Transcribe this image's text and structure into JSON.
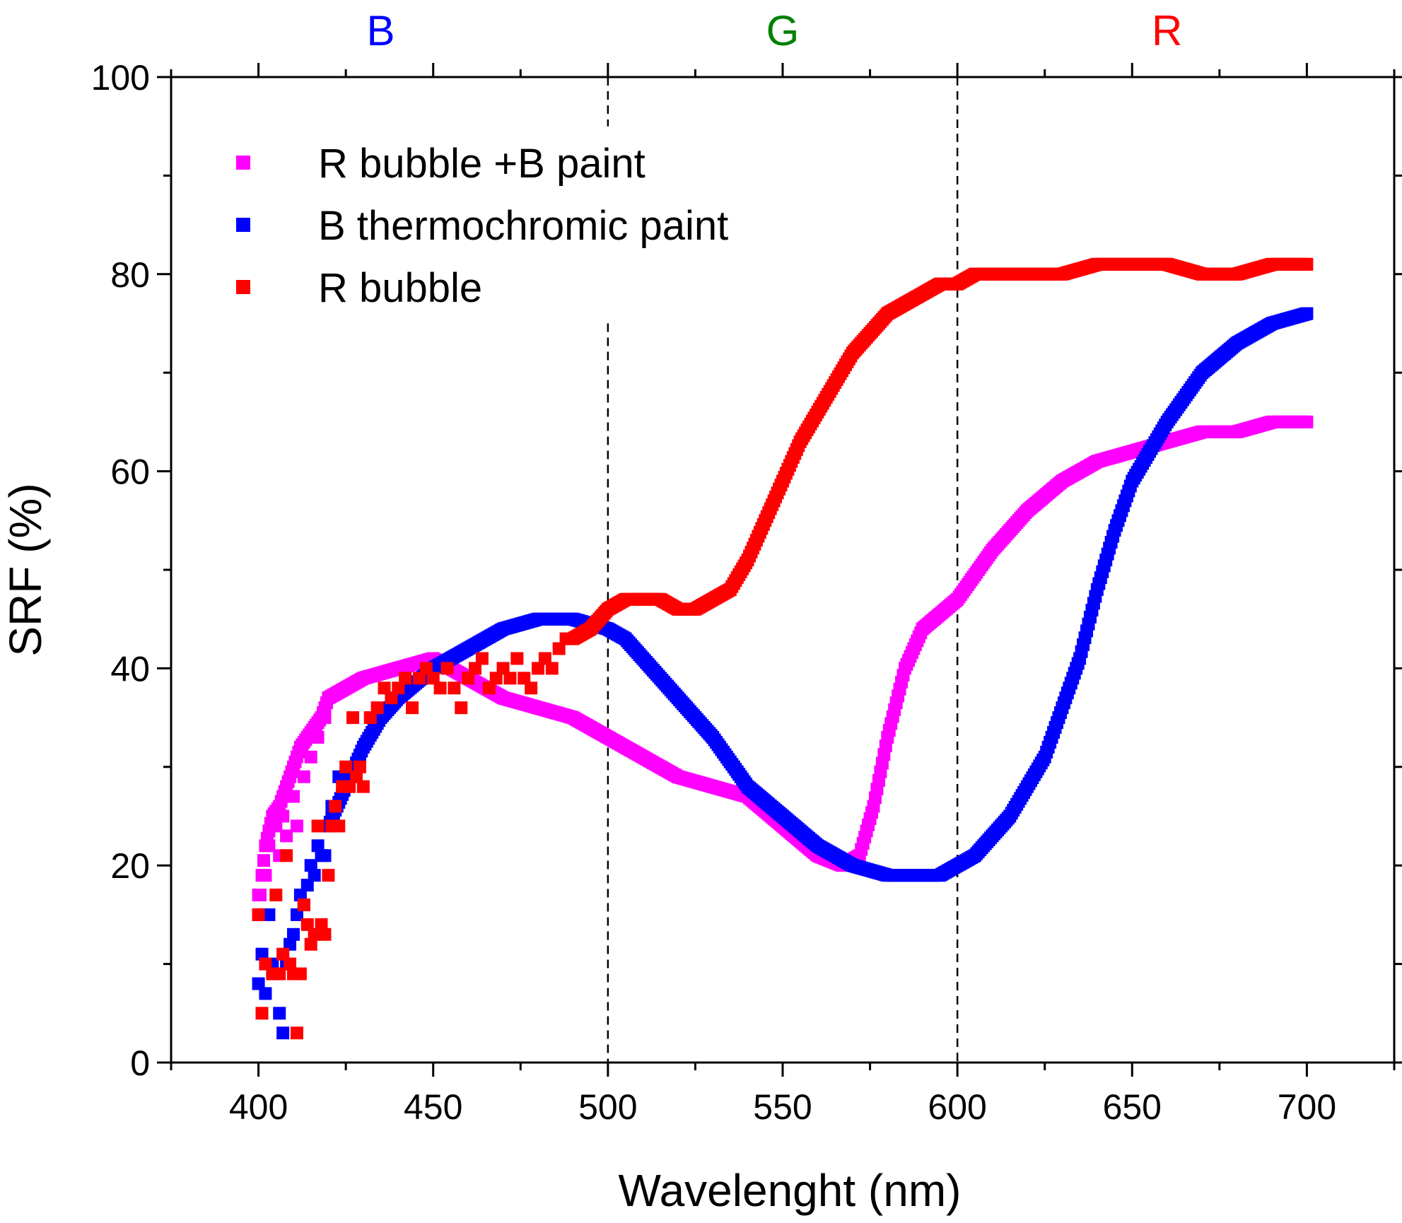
{
  "colors": {
    "magenta": "#ff00ff",
    "blue": "#0000ff",
    "red": "#ff0000",
    "green": "#008000",
    "axis": "#000000"
  },
  "chart_data": {
    "type": "scatter",
    "title": "",
    "xlabel": "Wavelenght (nm)",
    "ylabel": "SRF (%)",
    "xlim": [
      375,
      725
    ],
    "ylim": [
      0,
      100
    ],
    "xticks": [
      400,
      450,
      500,
      550,
      600,
      650,
      700
    ],
    "yticks": [
      0,
      20,
      40,
      60,
      80,
      100
    ],
    "grid": false,
    "legend_position": "top-left",
    "band_labels": [
      {
        "label": "B",
        "x": 435,
        "color": "#0000ff"
      },
      {
        "label": "G",
        "x": 550,
        "color": "#008000"
      },
      {
        "label": "R",
        "x": 660,
        "color": "#ff0000"
      }
    ],
    "vlines": [
      {
        "x": 500,
        "segments": [
          [
            100,
            95
          ],
          [
            75,
            0
          ]
        ]
      },
      {
        "x": 600,
        "segments": [
          [
            100,
            0
          ]
        ]
      }
    ],
    "series": [
      {
        "name": "R bubble +B paint",
        "color": "#ff00ff",
        "points": [
          [
            400,
            15
          ],
          [
            401,
            19
          ],
          [
            402,
            22
          ],
          [
            404,
            25
          ],
          [
            406,
            26
          ],
          [
            408,
            28
          ],
          [
            410,
            30
          ],
          [
            412,
            32
          ],
          [
            414,
            33
          ],
          [
            416,
            34
          ],
          [
            418,
            35
          ],
          [
            420,
            37
          ],
          [
            425,
            38
          ],
          [
            430,
            39
          ],
          [
            440,
            40
          ],
          [
            450,
            41
          ],
          [
            460,
            39
          ],
          [
            470,
            37
          ],
          [
            480,
            36
          ],
          [
            490,
            35
          ],
          [
            500,
            33
          ],
          [
            510,
            31
          ],
          [
            520,
            29
          ],
          [
            530,
            28
          ],
          [
            540,
            27
          ],
          [
            550,
            24
          ],
          [
            560,
            21
          ],
          [
            567,
            20
          ],
          [
            572,
            21
          ],
          [
            576,
            26
          ],
          [
            580,
            33
          ],
          [
            585,
            40
          ],
          [
            590,
            44
          ],
          [
            600,
            47
          ],
          [
            610,
            52
          ],
          [
            620,
            56
          ],
          [
            630,
            59
          ],
          [
            640,
            61
          ],
          [
            650,
            62
          ],
          [
            660,
            63
          ],
          [
            670,
            64
          ],
          [
            680,
            64
          ],
          [
            690,
            65
          ],
          [
            700,
            65
          ]
        ],
        "scatter_points": [
          [
            400,
            17
          ],
          [
            402,
            19
          ],
          [
            403,
            22
          ],
          [
            405,
            24
          ],
          [
            406,
            21
          ],
          [
            407,
            25
          ],
          [
            408,
            23
          ],
          [
            410,
            27
          ],
          [
            411,
            24
          ],
          [
            413,
            29
          ],
          [
            415,
            31
          ],
          [
            417,
            33
          ],
          [
            419,
            35
          ]
        ]
      },
      {
        "name": "B thermochromic paint",
        "color": "#0000ff",
        "points": [
          [
            420,
            24
          ],
          [
            425,
            28
          ],
          [
            430,
            32
          ],
          [
            435,
            35
          ],
          [
            440,
            37
          ],
          [
            450,
            40
          ],
          [
            460,
            42
          ],
          [
            470,
            44
          ],
          [
            480,
            45
          ],
          [
            490,
            45
          ],
          [
            500,
            44
          ],
          [
            505,
            43
          ],
          [
            510,
            41
          ],
          [
            520,
            37
          ],
          [
            530,
            33
          ],
          [
            540,
            28
          ],
          [
            550,
            25
          ],
          [
            560,
            22
          ],
          [
            570,
            20
          ],
          [
            580,
            19
          ],
          [
            590,
            19
          ],
          [
            595,
            19
          ],
          [
            600,
            20
          ],
          [
            605,
            21
          ],
          [
            610,
            23
          ],
          [
            615,
            25
          ],
          [
            620,
            28
          ],
          [
            625,
            31
          ],
          [
            630,
            36
          ],
          [
            635,
            41
          ],
          [
            640,
            48
          ],
          [
            645,
            54
          ],
          [
            650,
            59
          ],
          [
            655,
            62
          ],
          [
            660,
            65
          ],
          [
            670,
            70
          ],
          [
            680,
            73
          ],
          [
            690,
            75
          ],
          [
            700,
            76
          ]
        ],
        "scatter_points": [
          [
            400,
            8
          ],
          [
            401,
            11
          ],
          [
            402,
            7
          ],
          [
            403,
            15
          ],
          [
            404,
            10
          ],
          [
            405,
            9
          ],
          [
            406,
            5
          ],
          [
            407,
            3
          ],
          [
            408,
            10
          ],
          [
            409,
            12
          ],
          [
            410,
            13
          ],
          [
            411,
            15
          ],
          [
            412,
            17
          ],
          [
            413,
            16
          ],
          [
            414,
            18
          ],
          [
            415,
            20
          ],
          [
            416,
            19
          ],
          [
            417,
            22
          ],
          [
            418,
            21
          ],
          [
            419,
            21
          ],
          [
            421,
            26
          ],
          [
            423,
            29
          ]
        ]
      },
      {
        "name": "R bubble",
        "color": "#ff0000",
        "points": [
          [
            490,
            43
          ],
          [
            495,
            44
          ],
          [
            500,
            46
          ],
          [
            505,
            47
          ],
          [
            510,
            47
          ],
          [
            515,
            47
          ],
          [
            520,
            46
          ],
          [
            525,
            46
          ],
          [
            530,
            47
          ],
          [
            535,
            48
          ],
          [
            540,
            51
          ],
          [
            545,
            55
          ],
          [
            550,
            59
          ],
          [
            555,
            63
          ],
          [
            560,
            66
          ],
          [
            565,
            69
          ],
          [
            570,
            72
          ],
          [
            575,
            74
          ],
          [
            580,
            76
          ],
          [
            585,
            77
          ],
          [
            590,
            78
          ],
          [
            595,
            79
          ],
          [
            600,
            79
          ],
          [
            605,
            80
          ],
          [
            610,
            80
          ],
          [
            620,
            80
          ],
          [
            630,
            80
          ],
          [
            640,
            81
          ],
          [
            650,
            81
          ],
          [
            660,
            81
          ],
          [
            670,
            80
          ],
          [
            680,
            80
          ],
          [
            690,
            81
          ],
          [
            700,
            81
          ]
        ],
        "scatter_points": [
          [
            400,
            15
          ],
          [
            401,
            5
          ],
          [
            402,
            10
          ],
          [
            404,
            9
          ],
          [
            405,
            17
          ],
          [
            406,
            9
          ],
          [
            407,
            11
          ],
          [
            408,
            21
          ],
          [
            409,
            10
          ],
          [
            410,
            9
          ],
          [
            411,
            3
          ],
          [
            412,
            9
          ],
          [
            413,
            16
          ],
          [
            414,
            14
          ],
          [
            415,
            12
          ],
          [
            416,
            13
          ],
          [
            417,
            24
          ],
          [
            418,
            14
          ],
          [
            419,
            13
          ],
          [
            420,
            19
          ],
          [
            421,
            24
          ],
          [
            422,
            26
          ],
          [
            423,
            24
          ],
          [
            424,
            28
          ],
          [
            425,
            30
          ],
          [
            426,
            28
          ],
          [
            427,
            35
          ],
          [
            428,
            29
          ],
          [
            429,
            30
          ],
          [
            430,
            28
          ],
          [
            432,
            35
          ],
          [
            434,
            36
          ],
          [
            436,
            38
          ],
          [
            438,
            37
          ],
          [
            440,
            38
          ],
          [
            442,
            39
          ],
          [
            444,
            36
          ],
          [
            446,
            39
          ],
          [
            448,
            40
          ],
          [
            450,
            39
          ],
          [
            452,
            38
          ],
          [
            454,
            40
          ],
          [
            456,
            38
          ],
          [
            458,
            36
          ],
          [
            460,
            39
          ],
          [
            462,
            40
          ],
          [
            464,
            41
          ],
          [
            466,
            38
          ],
          [
            468,
            39
          ],
          [
            470,
            40
          ],
          [
            472,
            39
          ],
          [
            474,
            41
          ],
          [
            476,
            39
          ],
          [
            478,
            38
          ],
          [
            480,
            40
          ],
          [
            482,
            41
          ],
          [
            484,
            40
          ],
          [
            486,
            42
          ],
          [
            488,
            43
          ]
        ]
      }
    ]
  }
}
